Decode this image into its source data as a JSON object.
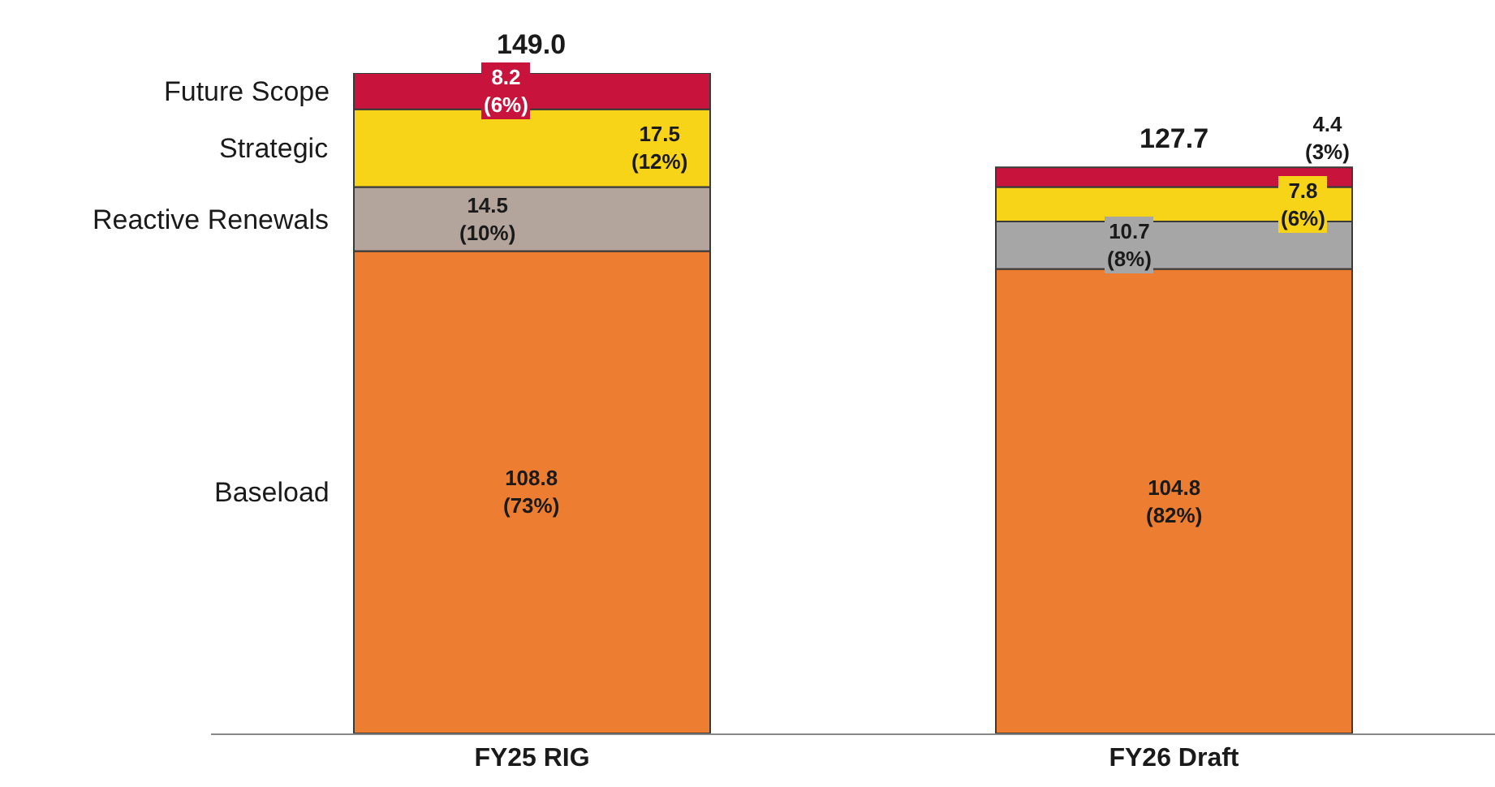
{
  "chart_data": {
    "type": "bar",
    "stacked": true,
    "categories": [
      "FY25 RIG",
      "FY26 Draft"
    ],
    "series": [
      {
        "name": "Baseload",
        "color": "#ed7d31",
        "values": [
          108.8,
          104.8
        ],
        "value_labels": [
          "108.8\n(73%)",
          "104.8\n(82%)"
        ]
      },
      {
        "name": "Reactive Renewals",
        "colors": [
          "#b3a59b",
          "#a6a6a6"
        ],
        "values": [
          14.5,
          10.7
        ],
        "value_labels": [
          "14.5\n(10%)",
          "10.7\n(8%)"
        ]
      },
      {
        "name": "Strategic",
        "color": "#f7d417",
        "values": [
          17.5,
          7.8
        ],
        "value_labels": [
          "17.5\n(12%)",
          "7.8\n(6%)"
        ]
      },
      {
        "name": "Future Scope",
        "color": "#c8143c",
        "values": [
          8.2,
          4.4
        ],
        "value_labels": [
          "8.2\n(6%)",
          "4.4\n(3%)"
        ]
      }
    ],
    "totals": [
      "149.0",
      "127.7"
    ],
    "legend": false,
    "grid": false,
    "tick_labels": "x"
  }
}
